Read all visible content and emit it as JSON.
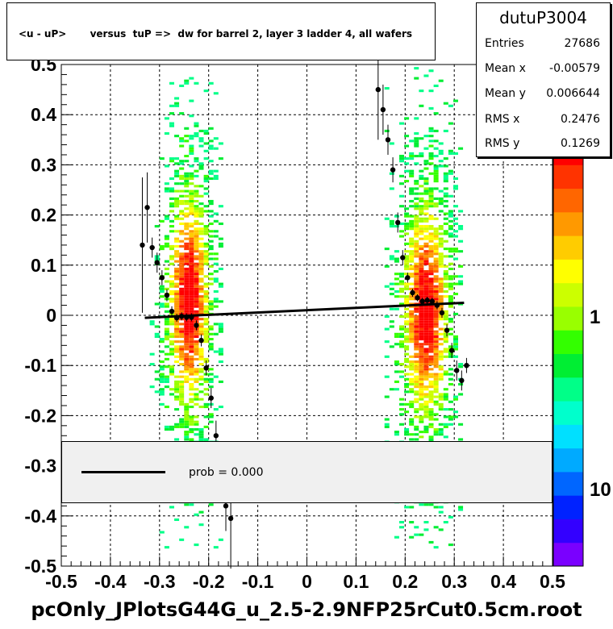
{
  "title": "<u - uP>       versus  tuP =>  dw for barrel 2, layer 3 ladder 4, all wafers",
  "stats": {
    "name": "dutuP3004",
    "rows": [
      {
        "label": "Entries",
        "value": "27686"
      },
      {
        "label": "Mean x",
        "value": "-0.00579"
      },
      {
        "label": "Mean y",
        "value": "0.006644"
      },
      {
        "label": "RMS x",
        "value": "0.2476"
      },
      {
        "label": "RMS y",
        "value": "0.1269"
      }
    ]
  },
  "legend": {
    "label": "prob = 0.000"
  },
  "footer": "pcOnly_JPlotsG44G_u_2.5-2.9NFP25rCut0.5cm.root",
  "chart_data": {
    "type": "heatmap",
    "xlim": [
      -0.5,
      0.5
    ],
    "ylim": [
      -0.5,
      0.5
    ],
    "x_ticks": [
      "-0.5",
      "-0.4",
      "-0.3",
      "-0.2",
      "-0.1",
      "0",
      "0.1",
      "0.2",
      "0.3",
      "0.4",
      "0.5"
    ],
    "y_ticks": [
      "-0.5",
      "-0.4",
      "-0.3",
      "-0.2",
      "-0.1",
      "0",
      "0.1",
      "0.2",
      "0.3",
      "0.4",
      "0.5"
    ],
    "grid": true,
    "z_scale": "log",
    "z_labels": [
      "10",
      "1",
      "10"
    ],
    "bands": [
      {
        "x_center": -0.245,
        "x_width": 0.09,
        "y_min": -0.48,
        "y_max": 0.48,
        "core_y": 0.03
      },
      {
        "x_center": 0.238,
        "x_width": 0.1,
        "y_min": -0.46,
        "y_max": 0.5,
        "core_y": 0.01
      }
    ],
    "profile_points": [
      {
        "x": -0.335,
        "y": 0.14,
        "err": 0.135
      },
      {
        "x": -0.325,
        "y": 0.215,
        "err": 0.07
      },
      {
        "x": -0.315,
        "y": 0.135,
        "err": 0.02
      },
      {
        "x": -0.305,
        "y": 0.105,
        "err": 0.02
      },
      {
        "x": -0.295,
        "y": 0.075,
        "err": 0.015
      },
      {
        "x": -0.285,
        "y": 0.04,
        "err": 0.012
      },
      {
        "x": -0.275,
        "y": 0.008,
        "err": 0.01
      },
      {
        "x": -0.265,
        "y": -0.005,
        "err": 0.008
      },
      {
        "x": -0.255,
        "y": -0.002,
        "err": 0.008
      },
      {
        "x": -0.245,
        "y": -0.004,
        "err": 0.008
      },
      {
        "x": -0.235,
        "y": -0.004,
        "err": 0.008
      },
      {
        "x": -0.225,
        "y": -0.02,
        "err": 0.01
      },
      {
        "x": -0.215,
        "y": -0.05,
        "err": 0.012
      },
      {
        "x": -0.205,
        "y": -0.105,
        "err": 0.015
      },
      {
        "x": -0.195,
        "y": -0.165,
        "err": 0.02
      },
      {
        "x": -0.185,
        "y": -0.24,
        "err": 0.03
      },
      {
        "x": -0.165,
        "y": -0.38,
        "err": 0.05
      },
      {
        "x": -0.155,
        "y": -0.405,
        "err": 0.1
      },
      {
        "x": 0.145,
        "y": 0.45,
        "err": 0.1
      },
      {
        "x": 0.155,
        "y": 0.41,
        "err": 0.05
      },
      {
        "x": 0.165,
        "y": 0.35,
        "err": 0.03
      },
      {
        "x": 0.175,
        "y": 0.29,
        "err": 0.025
      },
      {
        "x": 0.185,
        "y": 0.185,
        "err": 0.02
      },
      {
        "x": 0.195,
        "y": 0.115,
        "err": 0.015
      },
      {
        "x": 0.205,
        "y": 0.075,
        "err": 0.01
      },
      {
        "x": 0.215,
        "y": 0.045,
        "err": 0.008
      },
      {
        "x": 0.225,
        "y": 0.035,
        "err": 0.007
      },
      {
        "x": 0.235,
        "y": 0.028,
        "err": 0.007
      },
      {
        "x": 0.245,
        "y": 0.03,
        "err": 0.007
      },
      {
        "x": 0.255,
        "y": 0.028,
        "err": 0.007
      },
      {
        "x": 0.265,
        "y": 0.02,
        "err": 0.008
      },
      {
        "x": 0.275,
        "y": 0.005,
        "err": 0.01
      },
      {
        "x": 0.285,
        "y": -0.03,
        "err": 0.012
      },
      {
        "x": 0.295,
        "y": -0.07,
        "err": 0.015
      },
      {
        "x": 0.305,
        "y": -0.11,
        "err": 0.02
      },
      {
        "x": 0.315,
        "y": -0.13,
        "err": 0.02
      },
      {
        "x": 0.325,
        "y": -0.1,
        "err": 0.015
      }
    ],
    "fit_line": {
      "x": [
        -0.33,
        0.32
      ],
      "y": [
        -0.005,
        0.025
      ]
    }
  }
}
